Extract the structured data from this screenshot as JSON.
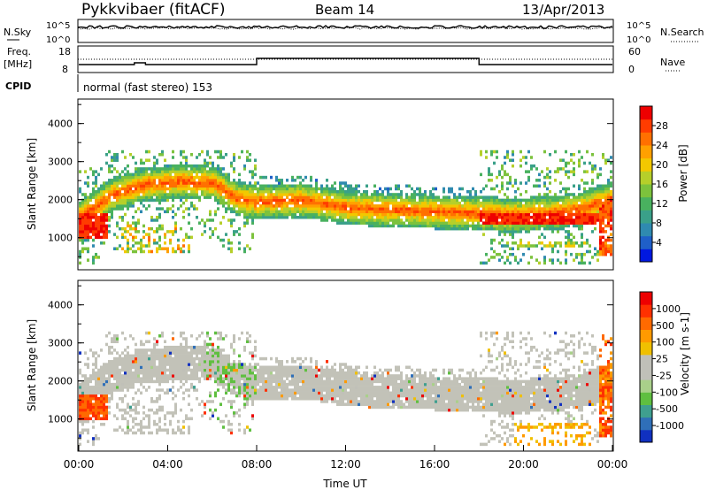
{
  "header": {
    "station": "Pykkvibaer (fitACF)",
    "beam": "Beam 14",
    "date": "13/Apr/2013"
  },
  "strip": {
    "nsky_label": "N.Sky",
    "nsearch_label": "N.Search",
    "freq_label": "Freq.",
    "freq_unit": "[MHz]",
    "nave_label": "Nave",
    "cpid_label": "CPID",
    "cpid_text": "normal (fast stereo) 153",
    "noise_ticks_left": [
      "10^5",
      "10^0"
    ],
    "noise_ticks_right": [
      "10^5",
      "10^0"
    ],
    "freq_ticks": [
      "18",
      "8"
    ],
    "nave_ticks": [
      "60",
      "0"
    ]
  },
  "chart_data": [
    {
      "type": "heatmap",
      "name_hint": "power",
      "ylabel": "Slant Range [km]",
      "yticks": [
        "4000",
        "3000",
        "2000",
        "1000"
      ],
      "ylim": [
        180,
        4620
      ],
      "xlim": [
        0,
        24
      ],
      "colorbar": {
        "label": "Power [dB]",
        "ticks": [
          "28",
          "24",
          "20",
          "16",
          "12",
          "8",
          "4"
        ],
        "colors": [
          "#0018e0",
          "#1f5fc8",
          "#2f8ab0",
          "#3aa089",
          "#49b15f",
          "#7cc23c",
          "#b6cf2a",
          "#f2c800",
          "#ffa000",
          "#ff7000",
          "#ff3c00",
          "#ee0000"
        ]
      },
      "bands": [
        {
          "x": [
            0.0,
            1.5,
            3.0,
            4.5,
            6.0,
            7.0,
            8.0,
            10.0,
            12.0,
            14.0,
            16.0,
            18.0,
            19.5,
            21.0,
            22.5,
            24.0
          ],
          "y": [
            1500,
            2100,
            2350,
            2450,
            2400,
            2000,
            1900,
            1950,
            1750,
            1700,
            1650,
            1600,
            1550,
            1600,
            1700,
            2000
          ],
          "width": 450,
          "core_db": 24
        }
      ]
    },
    {
      "type": "heatmap",
      "name_hint": "velocity",
      "ylabel": "Slant Range [km]",
      "yticks": [
        "4000",
        "3000",
        "2000",
        "1000"
      ],
      "ylim": [
        180,
        4620
      ],
      "xlim": [
        0,
        24
      ],
      "xticks": [
        "00:00",
        "04:00",
        "08:00",
        "12:00",
        "16:00",
        "20:00",
        "00:00"
      ],
      "xlabel": "Time UT",
      "colorbar": {
        "label": "Velocity [m s-1]",
        "ticks": [
          "1000",
          "500",
          "100",
          "25",
          "-25",
          "-100",
          "-500",
          "-1000"
        ],
        "colors": [
          "#1030c0",
          "#2f6fb8",
          "#3f9f8f",
          "#5fbf40",
          "#a9d08a",
          "#c0c0b8",
          "#c0c0b8",
          "#f0c000",
          "#ff9a00",
          "#ff6a00",
          "#ff3000",
          "#ee0000"
        ]
      }
    }
  ],
  "colors": {
    "gs_gray": "#c2c2b8",
    "frame": "#000000"
  }
}
